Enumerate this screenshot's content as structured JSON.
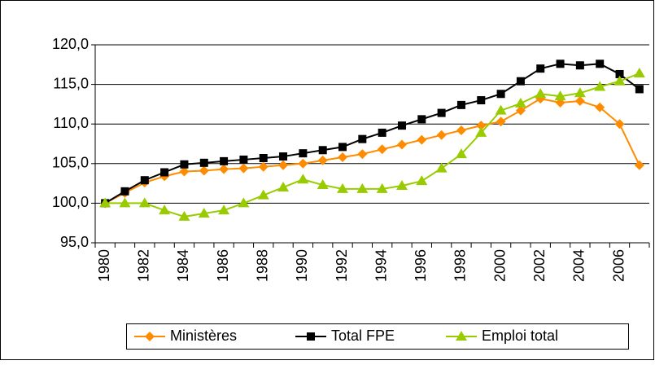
{
  "chart_data": {
    "type": "line",
    "categories": [
      "1980",
      null,
      "1982",
      null,
      "1984",
      null,
      "1986",
      null,
      "1988",
      null,
      "1990",
      null,
      "1992",
      null,
      "1994",
      null,
      "1996",
      null,
      "1998",
      null,
      "2000",
      null,
      "2002",
      null,
      "2004",
      null,
      "2006",
      null
    ],
    "series": [
      {
        "name": "Ministères",
        "color": "#ff8c00",
        "marker": "diamond",
        "values": [
          100,
          101.3,
          102.6,
          103.4,
          104.0,
          104.1,
          104.3,
          104.4,
          104.6,
          104.8,
          105.0,
          105.4,
          105.8,
          106.2,
          106.8,
          107.4,
          108.0,
          108.6,
          109.2,
          109.8,
          110.3,
          111.7,
          113.2,
          112.7,
          112.9,
          112.1,
          110.0,
          104.8
        ]
      },
      {
        "name": "Total FPE",
        "color": "#000000",
        "marker": "square",
        "values": [
          100,
          101.5,
          102.9,
          103.9,
          104.9,
          105.1,
          105.3,
          105.5,
          105.7,
          105.9,
          106.3,
          106.7,
          107.1,
          108.1,
          108.9,
          109.8,
          110.6,
          111.4,
          112.4,
          113.0,
          113.8,
          115.4,
          117.0,
          117.6,
          117.4,
          117.6,
          116.3,
          114.4
        ]
      },
      {
        "name": "Emploi total",
        "color": "#99cc00",
        "marker": "triangle",
        "values": [
          100,
          100,
          100,
          99.1,
          98.3,
          98.7,
          99.1,
          100.0,
          101.0,
          102.0,
          103.0,
          102.3,
          101.8,
          101.8,
          101.8,
          102.2,
          102.8,
          104.4,
          106.2,
          108.9,
          111.7,
          112.6,
          113.8,
          113.5,
          113.9,
          114.7,
          115.4,
          116.4
        ]
      }
    ],
    "ylim": [
      95,
      120
    ],
    "yticks": [
      {
        "value": 95,
        "label": "95,0"
      },
      {
        "value": 100,
        "label": "100,0"
      },
      {
        "value": 105,
        "label": "105,0"
      },
      {
        "value": 110,
        "label": "110,0"
      },
      {
        "value": 115,
        "label": "115,0"
      },
      {
        "value": 120,
        "label": "120,0"
      }
    ],
    "grid": true,
    "legend": "bottom"
  }
}
